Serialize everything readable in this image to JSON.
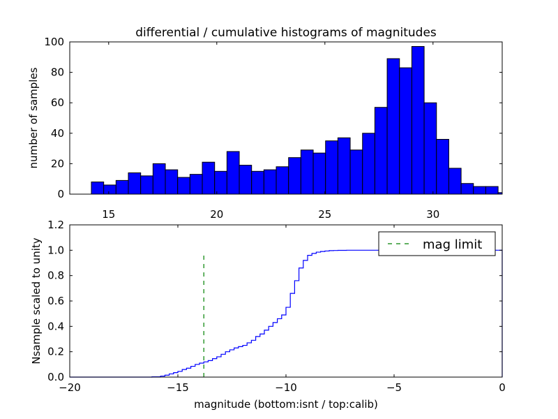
{
  "chart_data": [
    {
      "type": "bar",
      "title": "differential / cumulative histograms of magnitudes",
      "xlabel": "",
      "ylabel": "number of samples",
      "xlim": [
        13.2,
        33.2
      ],
      "ylim": [
        0,
        100
      ],
      "xticks": [
        "15",
        "20",
        "25",
        "30"
      ],
      "yticks": [
        "0",
        "20",
        "40",
        "60",
        "80",
        "100"
      ],
      "bar_color": "#0000ff",
      "bin_edges": [
        14.2,
        14.77,
        15.34,
        15.91,
        16.48,
        17.05,
        17.62,
        18.19,
        18.76,
        19.33,
        19.9,
        20.47,
        21.04,
        21.61,
        22.18,
        22.75,
        23.32,
        23.89,
        24.46,
        25.03,
        25.6,
        26.17,
        26.74,
        27.31,
        27.88,
        28.45,
        29.02,
        29.59,
        30.16,
        30.73,
        31.3,
        31.87,
        32.44,
        33.01,
        33.2
      ],
      "values": [
        8,
        6,
        9,
        14,
        12,
        20,
        16,
        11,
        13,
        21,
        15,
        28,
        19,
        15,
        16,
        18,
        24,
        29,
        27,
        35,
        37,
        29,
        40,
        57,
        89,
        83,
        97,
        60,
        36,
        17,
        7,
        5,
        5,
        1
      ]
    },
    {
      "type": "line",
      "drawstyle": "steps",
      "xlabel": "magnitude (bottom:isnt / top:calib)",
      "ylabel": "Nsample scaled to unity",
      "xlim": [
        -20,
        0
      ],
      "ylim": [
        0,
        1.2
      ],
      "xticks": [
        "−20",
        "−15",
        "−10",
        "−5",
        "0"
      ],
      "yticks": [
        "0.0",
        "0.2",
        "0.4",
        "0.6",
        "0.8",
        "1.0",
        "1.2"
      ],
      "series": [
        {
          "name": "cumulative",
          "color": "#0000ff",
          "x": [
            -20,
            -16.2,
            -15.8,
            -15.6,
            -15.4,
            -15.2,
            -15.0,
            -14.8,
            -14.6,
            -14.4,
            -14.2,
            -14.0,
            -13.8,
            -13.6,
            -13.4,
            -13.2,
            -13.0,
            -12.8,
            -12.6,
            -12.4,
            -12.2,
            -12.0,
            -11.8,
            -11.6,
            -11.4,
            -11.2,
            -11.0,
            -10.8,
            -10.6,
            -10.4,
            -10.2,
            -10.0,
            -9.8,
            -9.6,
            -9.4,
            -9.2,
            -9.0,
            -8.8,
            -8.6,
            -8.4,
            -8.2,
            -8.0,
            -7.8,
            -7.6,
            -7.2,
            -6.8,
            0
          ],
          "y": [
            0,
            0.002,
            0.008,
            0.015,
            0.025,
            0.035,
            0.045,
            0.06,
            0.07,
            0.085,
            0.1,
            0.11,
            0.12,
            0.13,
            0.145,
            0.16,
            0.18,
            0.2,
            0.215,
            0.23,
            0.24,
            0.25,
            0.27,
            0.29,
            0.32,
            0.34,
            0.37,
            0.4,
            0.43,
            0.46,
            0.49,
            0.55,
            0.66,
            0.76,
            0.86,
            0.92,
            0.96,
            0.975,
            0.985,
            0.99,
            0.994,
            0.997,
            0.998,
            0.999,
            1.0,
            1.0,
            1.0
          ]
        },
        {
          "name": "mag limit",
          "color": "#008000",
          "style": "dashed",
          "x": [
            -13.8,
            -13.8
          ],
          "y": [
            0,
            0.98
          ]
        }
      ],
      "legend": {
        "entries": [
          "mag limit"
        ],
        "placement": "upper-right"
      }
    }
  ]
}
